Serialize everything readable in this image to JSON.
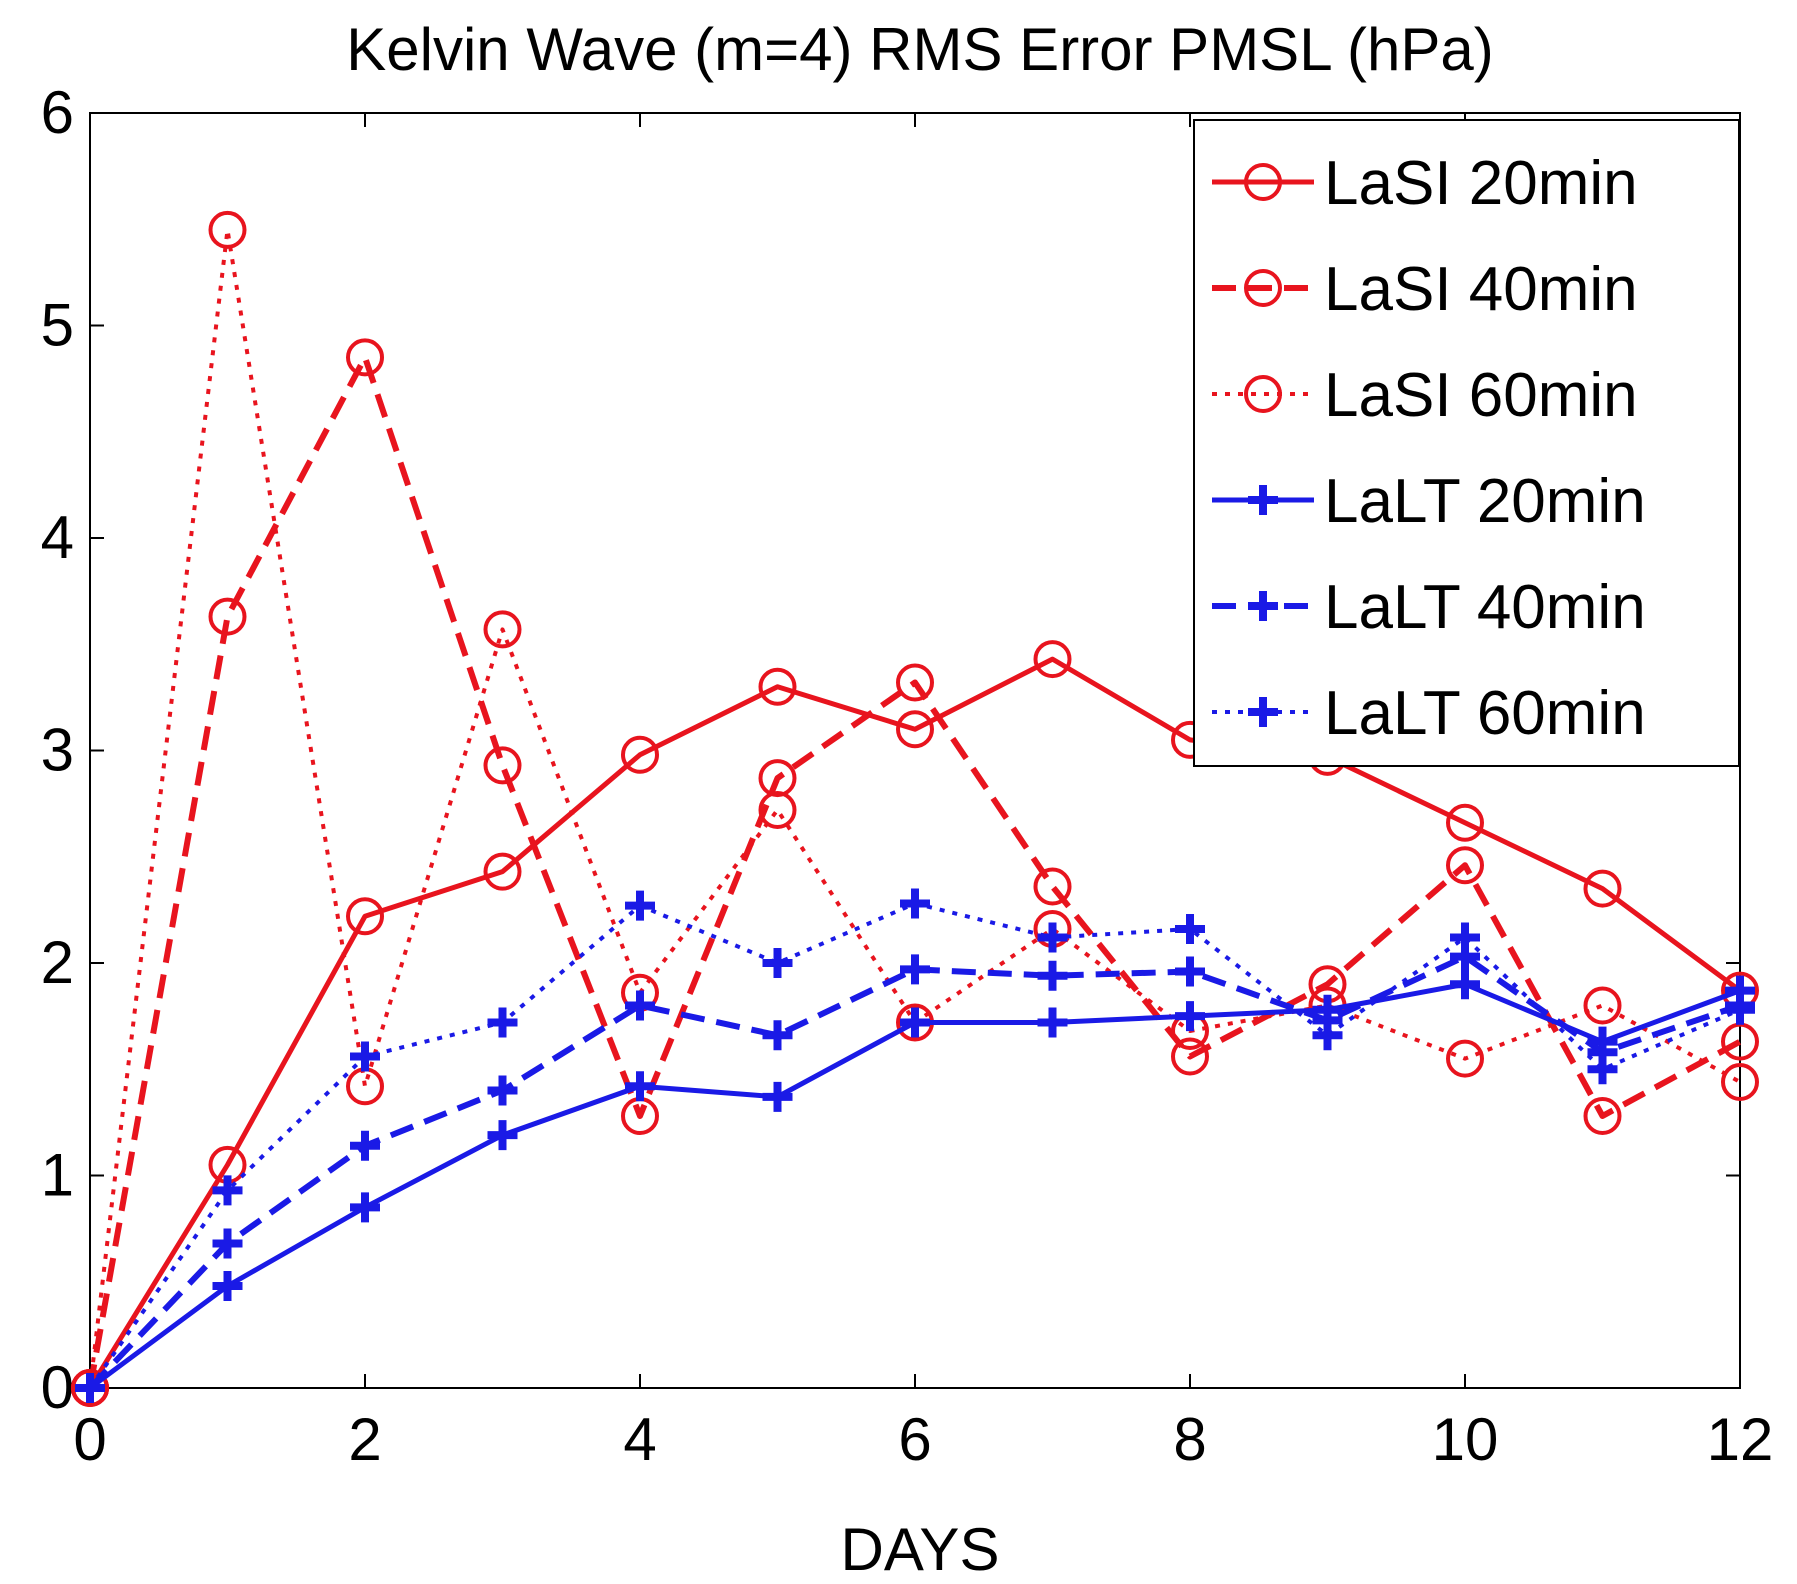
{
  "chart_data": {
    "type": "line",
    "title": "Kelvin Wave (m=4) RMS Error PMSL (hPa)",
    "xlabel": "DAYS",
    "ylabel": "",
    "xlim": [
      0,
      12
    ],
    "ylim": [
      0,
      6
    ],
    "xticks": [
      0,
      2,
      4,
      6,
      8,
      10,
      12
    ],
    "yticks": [
      0,
      1,
      2,
      3,
      4,
      5,
      6
    ],
    "grid": false,
    "legend_position": "top-right",
    "x": [
      0,
      1,
      2,
      3,
      4,
      5,
      6,
      7,
      8,
      9,
      10,
      11,
      12
    ],
    "series": [
      {
        "name": "LaSI 20min",
        "color": "#e8141e",
        "dash": "solid",
        "marker": "circle",
        "values": [
          0,
          1.05,
          2.22,
          2.43,
          2.98,
          3.3,
          3.1,
          3.43,
          3.05,
          2.97,
          2.66,
          2.35,
          1.87
        ]
      },
      {
        "name": "LaSI 40min",
        "color": "#e8141e",
        "dash": "dashed",
        "marker": "circle",
        "values": [
          0,
          3.63,
          4.85,
          2.93,
          1.28,
          2.87,
          3.32,
          2.36,
          1.56,
          1.9,
          2.46,
          1.28,
          1.63
        ]
      },
      {
        "name": "LaSI 60min",
        "color": "#e8141e",
        "dash": "dotted",
        "marker": "circle",
        "values": [
          0,
          5.45,
          1.42,
          3.57,
          1.86,
          2.72,
          1.72,
          2.16,
          1.68,
          1.8,
          1.55,
          1.8,
          1.44
        ]
      },
      {
        "name": "LaLT 20min",
        "color": "#1a1ae6",
        "dash": "solid",
        "marker": "plus",
        "values": [
          0,
          0.48,
          0.85,
          1.19,
          1.42,
          1.37,
          1.72,
          1.72,
          1.75,
          1.78,
          1.9,
          1.63,
          1.87
        ]
      },
      {
        "name": "LaLT 40min",
        "color": "#1a1ae6",
        "dash": "dashed",
        "marker": "plus",
        "values": [
          0,
          0.68,
          1.14,
          1.4,
          1.8,
          1.66,
          1.97,
          1.94,
          1.96,
          1.73,
          2.03,
          1.58,
          1.8
        ]
      },
      {
        "name": "LaLT 60min",
        "color": "#1a1ae6",
        "dash": "dotted",
        "marker": "plus",
        "values": [
          0,
          0.93,
          1.56,
          1.72,
          2.27,
          2.0,
          2.28,
          2.12,
          2.16,
          1.66,
          2.12,
          1.5,
          1.78
        ]
      }
    ]
  }
}
